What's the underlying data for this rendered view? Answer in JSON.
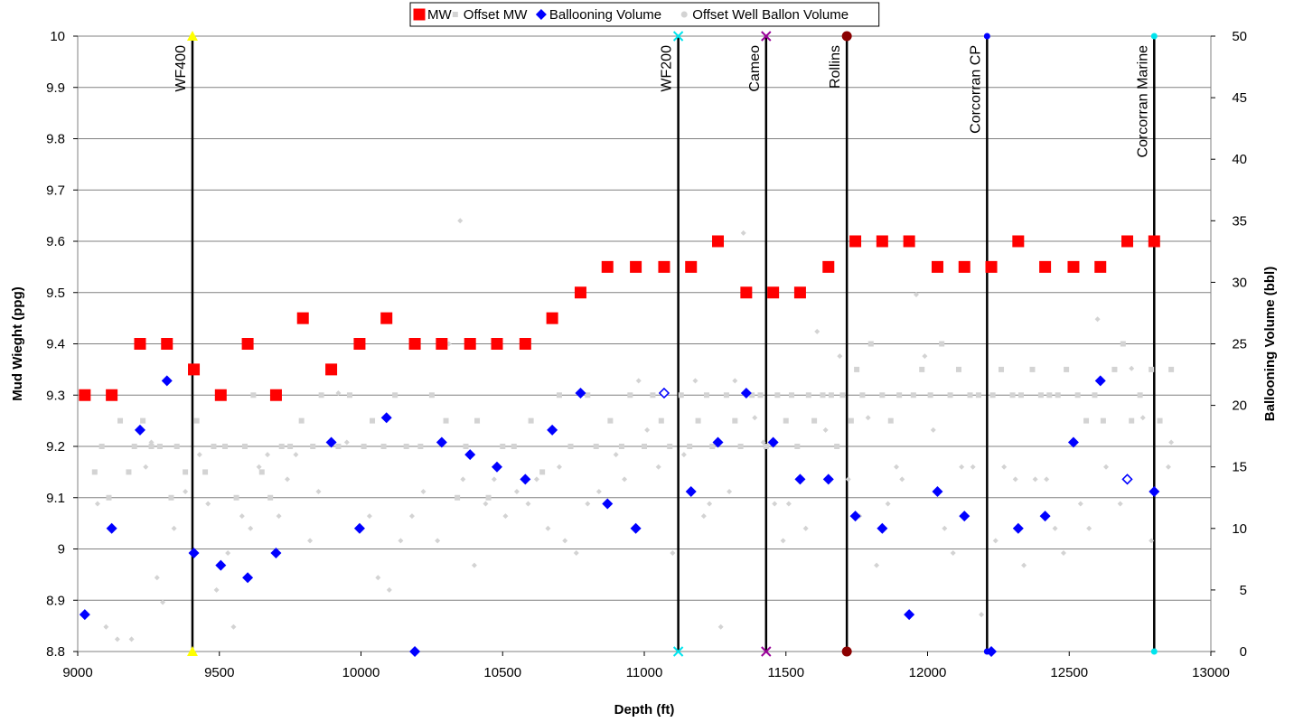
{
  "chart_data": {
    "type": "scatter",
    "xlabel": "Depth (ft)",
    "ylabel": "Mud Wieght (ppg)",
    "y2label": "Ballooning Volume (bbl)",
    "xlim": [
      9000,
      13000
    ],
    "ylim": [
      8.8,
      10
    ],
    "y2lim": [
      0,
      50
    ],
    "x_ticks": [
      9000,
      9500,
      10000,
      10500,
      11000,
      11500,
      12000,
      12500,
      13000
    ],
    "y_ticks": [
      8.8,
      8.9,
      9,
      9.1,
      9.2,
      9.3,
      9.4,
      9.5,
      9.6,
      9.7,
      9.8,
      9.9,
      10
    ],
    "y2_ticks": [
      0,
      5,
      10,
      15,
      20,
      25,
      30,
      35,
      40,
      45,
      50
    ],
    "grid": true,
    "legend_position": "top",
    "series": [
      {
        "name": "MW",
        "axis": "left",
        "marker": "square",
        "color": "#ff0000",
        "points": [
          [
            9025,
            9.3
          ],
          [
            9120,
            9.3
          ],
          [
            9220,
            9.4
          ],
          [
            9315,
            9.4
          ],
          [
            9410,
            9.35
          ],
          [
            9505,
            9.3
          ],
          [
            9600,
            9.4
          ],
          [
            9700,
            9.3
          ],
          [
            9795,
            9.45
          ],
          [
            9895,
            9.35
          ],
          [
            9995,
            9.4
          ],
          [
            10090,
            9.45
          ],
          [
            10190,
            9.4
          ],
          [
            10285,
            9.4
          ],
          [
            10385,
            9.4
          ],
          [
            10480,
            9.4
          ],
          [
            10580,
            9.4
          ],
          [
            10675,
            9.45
          ],
          [
            10775,
            9.5
          ],
          [
            10870,
            9.55
          ],
          [
            10970,
            9.55
          ],
          [
            11070,
            9.55
          ],
          [
            11165,
            9.55
          ],
          [
            11260,
            9.6
          ],
          [
            11360,
            9.5
          ],
          [
            11455,
            9.5
          ],
          [
            11550,
            9.5
          ],
          [
            11650,
            9.55
          ],
          [
            11745,
            9.6
          ],
          [
            11840,
            9.6
          ],
          [
            11935,
            9.6
          ],
          [
            12035,
            9.55
          ],
          [
            12130,
            9.55
          ],
          [
            12225,
            9.55
          ],
          [
            12320,
            9.6
          ],
          [
            12415,
            9.55
          ],
          [
            12515,
            9.55
          ],
          [
            12610,
            9.55
          ],
          [
            12705,
            9.6
          ],
          [
            12800,
            9.6
          ]
        ]
      },
      {
        "name": "Offset MW",
        "axis": "left",
        "marker": "square-small",
        "color": "#d3d3d3",
        "points": [
          [
            9060,
            9.15
          ],
          [
            9085,
            9.2
          ],
          [
            9110,
            9.1
          ],
          [
            9150,
            9.25
          ],
          [
            9180,
            9.15
          ],
          [
            9200,
            9.2
          ],
          [
            9230,
            9.25
          ],
          [
            9260,
            9.2
          ],
          [
            9290,
            9.2
          ],
          [
            9330,
            9.1
          ],
          [
            9350,
            9.2
          ],
          [
            9380,
            9.15
          ],
          [
            9420,
            9.25
          ],
          [
            9450,
            9.15
          ],
          [
            9480,
            9.2
          ],
          [
            9520,
            9.2
          ],
          [
            9560,
            9.1
          ],
          [
            9590,
            9.2
          ],
          [
            9620,
            9.3
          ],
          [
            9650,
            9.15
          ],
          [
            9680,
            9.1
          ],
          [
            9720,
            9.2
          ],
          [
            9750,
            9.2
          ],
          [
            9790,
            9.25
          ],
          [
            9830,
            9.2
          ],
          [
            9860,
            9.3
          ],
          [
            9920,
            9.2
          ],
          [
            9960,
            9.3
          ],
          [
            10010,
            9.2
          ],
          [
            10040,
            9.25
          ],
          [
            10080,
            9.2
          ],
          [
            10120,
            9.3
          ],
          [
            10160,
            9.2
          ],
          [
            10210,
            9.2
          ],
          [
            10250,
            9.3
          ],
          [
            10300,
            9.25
          ],
          [
            10340,
            9.1
          ],
          [
            10370,
            9.2
          ],
          [
            10410,
            9.25
          ],
          [
            10450,
            9.1
          ],
          [
            10500,
            9.2
          ],
          [
            10540,
            9.2
          ],
          [
            10600,
            9.25
          ],
          [
            10640,
            9.15
          ],
          [
            10700,
            9.3
          ],
          [
            10740,
            9.2
          ],
          [
            10800,
            9.3
          ],
          [
            10830,
            9.2
          ],
          [
            10880,
            9.25
          ],
          [
            10920,
            9.2
          ],
          [
            10950,
            9.3
          ],
          [
            11000,
            9.2
          ],
          [
            11030,
            9.3
          ],
          [
            11060,
            9.25
          ],
          [
            11090,
            9.2
          ],
          [
            11130,
            9.3
          ],
          [
            11160,
            9.2
          ],
          [
            11190,
            9.25
          ],
          [
            11220,
            9.3
          ],
          [
            11240,
            9.2
          ],
          [
            11290,
            9.3
          ],
          [
            11320,
            9.25
          ],
          [
            11340,
            9.2
          ],
          [
            11380,
            9.3
          ],
          [
            11410,
            9.3
          ],
          [
            11430,
            9.2
          ],
          [
            11470,
            9.3
          ],
          [
            11500,
            9.25
          ],
          [
            11520,
            9.3
          ],
          [
            11540,
            9.2
          ],
          [
            11580,
            9.3
          ],
          [
            11600,
            9.25
          ],
          [
            11630,
            9.3
          ],
          [
            11660,
            9.3
          ],
          [
            11680,
            9.2
          ],
          [
            11700,
            9.3
          ],
          [
            11730,
            9.25
          ],
          [
            11750,
            9.35
          ],
          [
            11770,
            9.3
          ],
          [
            11800,
            9.4
          ],
          [
            11840,
            9.3
          ],
          [
            11870,
            9.25
          ],
          [
            11900,
            9.3
          ],
          [
            11950,
            9.3
          ],
          [
            11980,
            9.35
          ],
          [
            12010,
            9.3
          ],
          [
            12050,
            9.4
          ],
          [
            12080,
            9.3
          ],
          [
            12110,
            9.35
          ],
          [
            12150,
            9.3
          ],
          [
            12180,
            9.3
          ],
          [
            12230,
            9.3
          ],
          [
            12260,
            9.35
          ],
          [
            12300,
            9.3
          ],
          [
            12330,
            9.3
          ],
          [
            12370,
            9.35
          ],
          [
            12400,
            9.3
          ],
          [
            12430,
            9.3
          ],
          [
            12460,
            9.3
          ],
          [
            12490,
            9.35
          ],
          [
            12530,
            9.3
          ],
          [
            12560,
            9.25
          ],
          [
            12590,
            9.3
          ],
          [
            12620,
            9.25
          ],
          [
            12660,
            9.35
          ],
          [
            12690,
            9.4
          ],
          [
            12720,
            9.25
          ],
          [
            12750,
            9.3
          ],
          [
            12790,
            9.35
          ],
          [
            12820,
            9.25
          ],
          [
            12860,
            9.35
          ]
        ]
      },
      {
        "name": "Ballooning Volume",
        "axis": "right",
        "marker": "diamond",
        "color": "#0000ff",
        "points": [
          [
            9025,
            3
          ],
          [
            9120,
            10
          ],
          [
            9220,
            18
          ],
          [
            9315,
            22
          ],
          [
            9410,
            8
          ],
          [
            9505,
            7
          ],
          [
            9600,
            6
          ],
          [
            9700,
            8
          ],
          [
            9895,
            17
          ],
          [
            9995,
            10
          ],
          [
            10090,
            19
          ],
          [
            10190,
            0
          ],
          [
            10285,
            17
          ],
          [
            10385,
            16
          ],
          [
            10480,
            15
          ],
          [
            10580,
            14
          ],
          [
            10675,
            18
          ],
          [
            10775,
            21
          ],
          [
            10870,
            12
          ],
          [
            10970,
            10
          ],
          [
            11070,
            21
          ],
          [
            11165,
            13
          ],
          [
            11260,
            17
          ],
          [
            11360,
            21
          ],
          [
            11455,
            17
          ],
          [
            11550,
            14
          ],
          [
            11650,
            14
          ],
          [
            11745,
            11
          ],
          [
            11840,
            10
          ],
          [
            11935,
            3
          ],
          [
            12035,
            13
          ],
          [
            12130,
            11
          ],
          [
            12225,
            0
          ],
          [
            12320,
            10
          ],
          [
            12415,
            11
          ],
          [
            12515,
            17
          ],
          [
            12610,
            22
          ],
          [
            12705,
            14
          ],
          [
            12800,
            13
          ]
        ]
      },
      {
        "name": "Offset Well Ballon Volume",
        "axis": "right",
        "marker": "diamond-small",
        "color": "#d3d3d3",
        "points": [
          [
            9070,
            12
          ],
          [
            9100,
            2
          ],
          [
            9140,
            1
          ],
          [
            9190,
            1
          ],
          [
            9240,
            15
          ],
          [
            9260,
            17
          ],
          [
            9280,
            6
          ],
          [
            9300,
            4
          ],
          [
            9340,
            10
          ],
          [
            9380,
            13
          ],
          [
            9430,
            16
          ],
          [
            9460,
            12
          ],
          [
            9490,
            5
          ],
          [
            9530,
            8
          ],
          [
            9550,
            2
          ],
          [
            9580,
            11
          ],
          [
            9610,
            10
          ],
          [
            9640,
            15
          ],
          [
            9670,
            16
          ],
          [
            9710,
            11
          ],
          [
            9740,
            14
          ],
          [
            9770,
            16
          ],
          [
            9820,
            9
          ],
          [
            9850,
            13
          ],
          [
            9920,
            21
          ],
          [
            9950,
            17
          ],
          [
            10030,
            11
          ],
          [
            10060,
            6
          ],
          [
            10100,
            5
          ],
          [
            10140,
            9
          ],
          [
            10180,
            11
          ],
          [
            10220,
            13
          ],
          [
            10270,
            9
          ],
          [
            10310,
            25
          ],
          [
            10350,
            35
          ],
          [
            10360,
            14
          ],
          [
            10400,
            7
          ],
          [
            10440,
            12
          ],
          [
            10470,
            14
          ],
          [
            10510,
            11
          ],
          [
            10550,
            13
          ],
          [
            10590,
            12
          ],
          [
            10620,
            14
          ],
          [
            10660,
            10
          ],
          [
            10700,
            15
          ],
          [
            10720,
            9
          ],
          [
            10760,
            8
          ],
          [
            10800,
            12
          ],
          [
            10840,
            13
          ],
          [
            10900,
            16
          ],
          [
            10930,
            14
          ],
          [
            10980,
            22
          ],
          [
            11010,
            18
          ],
          [
            11050,
            15
          ],
          [
            11100,
            8
          ],
          [
            11140,
            16
          ],
          [
            11180,
            22
          ],
          [
            11210,
            11
          ],
          [
            11230,
            12
          ],
          [
            11270,
            2
          ],
          [
            11300,
            13
          ],
          [
            11320,
            22
          ],
          [
            11350,
            34
          ],
          [
            11390,
            19
          ],
          [
            11420,
            17
          ],
          [
            11460,
            12
          ],
          [
            11490,
            9
          ],
          [
            11510,
            12
          ],
          [
            11570,
            10
          ],
          [
            11610,
            26
          ],
          [
            11640,
            18
          ],
          [
            11690,
            24
          ],
          [
            11720,
            14
          ],
          [
            11760,
            11
          ],
          [
            11790,
            19
          ],
          [
            11820,
            7
          ],
          [
            11860,
            12
          ],
          [
            11890,
            15
          ],
          [
            11910,
            14
          ],
          [
            11960,
            29
          ],
          [
            11990,
            24
          ],
          [
            12020,
            18
          ],
          [
            12060,
            10
          ],
          [
            12090,
            8
          ],
          [
            12120,
            15
          ],
          [
            12160,
            15
          ],
          [
            12190,
            3
          ],
          [
            12240,
            9
          ],
          [
            12270,
            15
          ],
          [
            12310,
            14
          ],
          [
            12340,
            7
          ],
          [
            12380,
            14
          ],
          [
            12420,
            14
          ],
          [
            12450,
            10
          ],
          [
            12480,
            8
          ],
          [
            12540,
            12
          ],
          [
            12570,
            10
          ],
          [
            12600,
            27
          ],
          [
            12630,
            15
          ],
          [
            12680,
            12
          ],
          [
            12720,
            23
          ],
          [
            12760,
            19
          ],
          [
            12790,
            9
          ],
          [
            12850,
            15
          ],
          [
            12860,
            17
          ]
        ]
      },
      {
        "name": "",
        "axis": "right",
        "marker": "diamond-open",
        "color": "#0000ff",
        "points": [
          [
            11070,
            21
          ],
          [
            12705,
            14
          ]
        ]
      }
    ],
    "vertical_markers": [
      {
        "label": "WF400",
        "x": 9405,
        "color": "#ffff00",
        "marker": "triangle"
      },
      {
        "label": "WF200",
        "x": 11120,
        "color": "#00e5ee",
        "marker": "x"
      },
      {
        "label": "Cameo",
        "x": 11430,
        "color": "#990099",
        "marker": "x"
      },
      {
        "label": "Rollins",
        "x": 11715,
        "color": "#8b0000",
        "marker": "circle"
      },
      {
        "label": "Corcorran CP",
        "x": 12210,
        "color": "#0000ff",
        "marker": "dot"
      },
      {
        "label": "Corcorran Marine",
        "x": 12800,
        "color": "#00e5ee",
        "marker": "dot"
      }
    ]
  }
}
